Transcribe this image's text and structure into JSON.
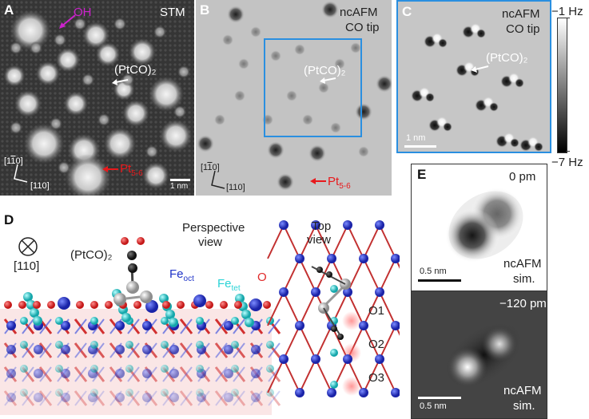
{
  "panels": {
    "A": {
      "letter": "A",
      "mode": "STM",
      "oh_label": "OH",
      "ptco_label": "(PtCO)₂",
      "pt_label": "Pt",
      "pt_sub": "5-6",
      "dir1": "[1̅1̅0]",
      "dir1_plain": "[1",
      "dir1_bar": "1",
      "dir1_end": "0]",
      "dir2": "[110]",
      "scale": "1 nm"
    },
    "B": {
      "letter": "B",
      "mode1": "ncAFM",
      "mode2": "CO tip",
      "ptco_label": "(PtCO)₂",
      "pt_label": "Pt",
      "pt_sub": "5-6",
      "dir1_plain": "[1",
      "dir1_bar": "1",
      "dir1_end": "0]",
      "dir2": "[110]"
    },
    "C": {
      "letter": "C",
      "mode1": "ncAFM",
      "mode2": "CO tip",
      "ptco_label": "(PtCO)₂",
      "scale": "1 nm",
      "cbar_top": "−1 Hz",
      "cbar_bottom": "−7 Hz"
    },
    "D": {
      "letter": "D",
      "direction": "[110]",
      "ptco_label": "(PtCO)₂",
      "perspective": [
        "Perspective",
        "view"
      ],
      "top_view": [
        "Top",
        "view"
      ],
      "fe_oct": "Fe",
      "fe_oct_sub": "oct",
      "fe_tet": "Fe",
      "fe_tet_sub": "tet",
      "o_label": "O",
      "sites": [
        "O1",
        "O2",
        "O3"
      ]
    },
    "E": {
      "letter": "E",
      "top_height": "0 pm",
      "bottom_height": "−120 pm",
      "scale_top": "0.5 nm",
      "scale_bottom": "0.5 nm",
      "sim_label1": "ncAFM",
      "sim_label2": "sim."
    }
  },
  "colors": {
    "pt_red": "#e8191c",
    "oh_magenta": "#cc22cc",
    "frame_blue": "#2a8fe0",
    "fe_oct_blue": "#1f33c8",
    "fe_tet_cyan": "#29d3d6",
    "oxygen_red": "#e02a2a"
  }
}
